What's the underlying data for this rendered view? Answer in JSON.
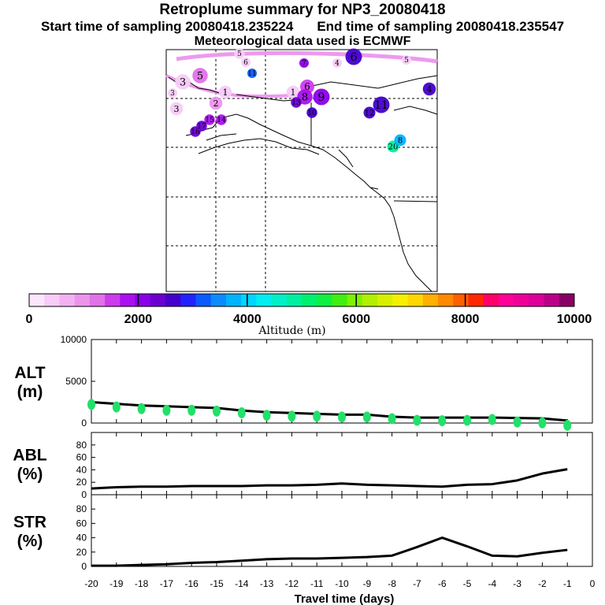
{
  "header": {
    "title": "Retroplume summary for NP3_20080418",
    "start": "Start time of sampling 20080418.235224",
    "end": "End time of sampling 20080418.235547",
    "met": "Meteorological data used is ECMWF"
  },
  "colors": {
    "alt_marker": "#22e06a",
    "line": "#000000",
    "plume_light": "#ee99ee",
    "colorbar": [
      "#fbe6fb",
      "#f7ccf7",
      "#f2b2f2",
      "#ec94ec",
      "#e272e8",
      "#cc3dee",
      "#aa10f0",
      "#8a00e8",
      "#6a00d0",
      "#4400cc",
      "#2222ff",
      "#0a5aff",
      "#0a8cff",
      "#00b4ff",
      "#00d6ff",
      "#00eef0",
      "#00f0c8",
      "#00f0a0",
      "#00f070",
      "#10f040",
      "#40f010",
      "#80f000",
      "#b0f000",
      "#d8f000",
      "#f6f000",
      "#ffd800",
      "#ffb000",
      "#ff8a00",
      "#ff6000",
      "#ff2800",
      "#ff0066",
      "#ff0099",
      "#ee0099",
      "#dd0099",
      "#bb0088",
      "#880066"
    ]
  },
  "map": {
    "labels": [
      {
        "t": "5",
        "v": 1.0
      },
      {
        "t": "6",
        "v": 1.0
      },
      {
        "t": "6",
        "v": 9.0
      },
      {
        "t": "7",
        "v": 7.0
      },
      {
        "t": "4",
        "v": 1.0
      },
      {
        "t": "5",
        "v": 1.0
      },
      {
        "t": "5",
        "v": 4.0
      },
      {
        "t": "3",
        "v": 1.0
      },
      {
        "t": "3",
        "v": 1.0
      },
      {
        "t": "1",
        "v": 1.0
      },
      {
        "t": "11",
        "v": 11.0
      },
      {
        "t": "3",
        "v": 1.0
      },
      {
        "t": "1",
        "v": 1.0
      },
      {
        "t": "2",
        "v": 3.0
      },
      {
        "t": "6",
        "v": 5.0
      },
      {
        "t": "8",
        "v": 6.0
      },
      {
        "t": "9",
        "v": 7.0
      },
      {
        "t": "4",
        "v": 9.0
      },
      {
        "t": "11",
        "v": 9.0
      },
      {
        "t": "12",
        "v": 9.0
      },
      {
        "t": "13",
        "v": 8.0
      },
      {
        "t": "10",
        "v": 9.0
      },
      {
        "t": "20",
        "v": 17.0
      },
      {
        "t": "8",
        "v": 13.0
      },
      {
        "t": "15",
        "v": 6.0
      },
      {
        "t": "14",
        "v": 6.0
      },
      {
        "t": "16",
        "v": 8.0
      },
      {
        "t": "17",
        "v": 8.0
      }
    ]
  },
  "colorbar": {
    "ticks": [
      "0",
      "2000",
      "4000",
      "6000",
      "8000",
      "10000"
    ],
    "label": "Altitude (m)"
  },
  "chart_data": [
    {
      "type": "scatter",
      "title": "ALT (m)",
      "panel_title_1": "ALT",
      "panel_title_2": "(m)",
      "ylim": [
        0,
        10000
      ],
      "yticks": [
        "0",
        "5000",
        "10000"
      ],
      "x": [
        -20,
        -19,
        -18,
        -17,
        -16,
        -15,
        -14,
        -13,
        -12,
        -11,
        -10,
        -9,
        -8,
        -7,
        -6,
        -5,
        -4,
        -3,
        -2,
        -1
      ],
      "markers": [
        2600,
        2300,
        2100,
        1900,
        1900,
        1800,
        1600,
        1300,
        1200,
        1200,
        1100,
        1100,
        900,
        700,
        650,
        700,
        800,
        500,
        400,
        100
      ],
      "line": [
        2500,
        2300,
        2100,
        2000,
        1900,
        1800,
        1500,
        1300,
        1200,
        1100,
        1000,
        1000,
        750,
        650,
        650,
        650,
        650,
        600,
        550,
        300
      ]
    },
    {
      "type": "line",
      "title": "ABL (%)",
      "panel_title_1": "ABL",
      "panel_title_2": "(%)",
      "ylim": [
        0,
        100
      ],
      "yticks": [
        "0",
        "20",
        "40",
        "60",
        "80"
      ],
      "x": [
        -20,
        -19,
        -18,
        -17,
        -16,
        -15,
        -14,
        -13,
        -12,
        -11,
        -10,
        -9,
        -8,
        -7,
        -6,
        -5,
        -4,
        -3,
        -2,
        -1
      ],
      "values": [
        10,
        12,
        13,
        13,
        14,
        14,
        14,
        15,
        15,
        16,
        18,
        16,
        15,
        14,
        13,
        16,
        17,
        23,
        34,
        41
      ]
    },
    {
      "type": "line",
      "title": "STR (%)",
      "panel_title_1": "STR",
      "panel_title_2": "(%)",
      "ylim": [
        0,
        100
      ],
      "yticks": [
        "0",
        "20",
        "40",
        "60",
        "80"
      ],
      "x": [
        -20,
        -19,
        -18,
        -17,
        -16,
        -15,
        -14,
        -13,
        -12,
        -11,
        -10,
        -9,
        -8,
        -7,
        -6,
        -5,
        -4,
        -3,
        -2,
        -1
      ],
      "values": [
        1,
        1,
        2,
        3,
        5,
        6,
        8,
        10,
        11,
        11,
        12,
        13,
        15,
        27,
        40,
        28,
        15,
        14,
        19,
        23
      ]
    }
  ],
  "xaxis": {
    "label": "Travel time (days)",
    "ticks": [
      "-20",
      "-19",
      "-18",
      "-17",
      "-16",
      "-15",
      "-14",
      "-13",
      "-12",
      "-11",
      "-10",
      "-9",
      "-8",
      "-7",
      "-6",
      "-5",
      "-4",
      "-3",
      "-2",
      "-1",
      "0"
    ]
  }
}
